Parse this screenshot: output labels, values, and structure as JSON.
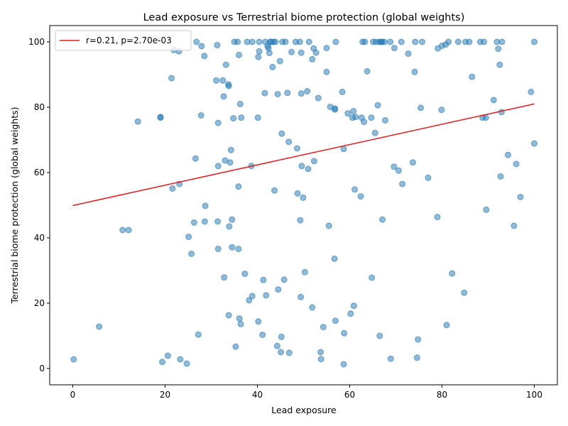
{
  "chart_data": {
    "type": "scatter",
    "title": "Lead exposure vs Terrestrial biome protection (global weights)",
    "xlabel": "Lead exposure",
    "ylabel": "Terrestrial biome protection (global weights)",
    "xlim": [
      -5,
      105
    ],
    "ylim": [
      -5,
      105
    ],
    "x_ticks": [
      0,
      20,
      40,
      60,
      80,
      100
    ],
    "y_ticks": [
      0,
      20,
      40,
      60,
      80,
      100
    ],
    "grid": false,
    "legend_position": "upper-left",
    "colors": {
      "points": "#1f77b4",
      "fit": "#e41a1c"
    },
    "fit_line": {
      "label": "r=0.21, p=2.70e-03",
      "x": [
        0,
        100
      ],
      "y": [
        49.9,
        81.0
      ]
    },
    "points": [
      [
        0.2,
        2.8
      ],
      [
        5.7,
        12.8
      ],
      [
        10.8,
        42.4
      ],
      [
        12.1,
        42.4
      ],
      [
        14.1,
        75.6
      ],
      [
        19.0,
        77.0
      ],
      [
        19.0,
        76.8
      ],
      [
        19.4,
        2.0
      ],
      [
        20.6,
        3.9
      ],
      [
        21.4,
        88.9
      ],
      [
        21.6,
        55.1
      ],
      [
        21.9,
        97.5
      ],
      [
        23.0,
        97.1
      ],
      [
        23.1,
        56.5
      ],
      [
        23.3,
        2.8
      ],
      [
        24.7,
        1.5
      ],
      [
        25.1,
        40.3
      ],
      [
        25.7,
        35.1
      ],
      [
        26.3,
        44.7
      ],
      [
        26.6,
        64.3
      ],
      [
        26.8,
        100.0
      ],
      [
        27.2,
        10.4
      ],
      [
        27.8,
        77.5
      ],
      [
        27.9,
        98.7
      ],
      [
        28.5,
        95.7
      ],
      [
        28.6,
        45.0
      ],
      [
        28.7,
        49.8
      ],
      [
        31.1,
        88.2
      ],
      [
        31.3,
        99.0
      ],
      [
        31.4,
        45.0
      ],
      [
        31.5,
        36.6
      ],
      [
        31.5,
        62.0
      ],
      [
        31.5,
        75.2
      ],
      [
        32.5,
        88.2
      ],
      [
        32.7,
        83.3
      ],
      [
        32.8,
        27.9
      ],
      [
        33.0,
        63.7
      ],
      [
        33.2,
        93.0
      ],
      [
        33.7,
        87.0
      ],
      [
        33.8,
        86.5
      ],
      [
        33.8,
        16.3
      ],
      [
        33.9,
        43.5
      ],
      [
        34.1,
        63.1
      ],
      [
        34.3,
        66.9
      ],
      [
        34.5,
        45.6
      ],
      [
        34.5,
        37.1
      ],
      [
        34.8,
        76.6
      ],
      [
        35.0,
        100.0
      ],
      [
        35.3,
        6.7
      ],
      [
        35.7,
        100.0
      ],
      [
        35.9,
        36.6
      ],
      [
        35.9,
        55.7
      ],
      [
        36.0,
        96.0
      ],
      [
        36.1,
        15.3
      ],
      [
        36.3,
        81.0
      ],
      [
        36.4,
        13.6
      ],
      [
        36.5,
        76.8
      ],
      [
        37.3,
        29.0
      ],
      [
        37.8,
        100.0
      ],
      [
        38.2,
        20.9
      ],
      [
        38.7,
        62.0
      ],
      [
        38.9,
        22.2
      ],
      [
        38.9,
        100.0
      ],
      [
        40.1,
        76.8
      ],
      [
        40.2,
        95.4
      ],
      [
        40.2,
        14.4
      ],
      [
        40.4,
        100.0
      ],
      [
        40.4,
        97.1
      ],
      [
        41.1,
        10.3
      ],
      [
        41.3,
        27.1
      ],
      [
        41.6,
        84.3
      ],
      [
        41.7,
        100.0
      ],
      [
        41.9,
        22.4
      ],
      [
        42.2,
        98.7
      ],
      [
        42.4,
        98.1
      ],
      [
        42.6,
        96.6
      ],
      [
        42.7,
        100.0
      ],
      [
        43.0,
        100.0
      ],
      [
        43.3,
        92.3
      ],
      [
        43.5,
        100.0
      ],
      [
        43.7,
        54.5
      ],
      [
        43.9,
        100.0
      ],
      [
        44.3,
        6.9
      ],
      [
        44.4,
        84.0
      ],
      [
        44.5,
        24.2
      ],
      [
        44.9,
        94.1
      ],
      [
        45.1,
        5.0
      ],
      [
        45.2,
        9.7
      ],
      [
        45.3,
        71.9
      ],
      [
        45.4,
        100.0
      ],
      [
        45.8,
        27.2
      ],
      [
        46.1,
        100.0
      ],
      [
        46.5,
        84.4
      ],
      [
        46.8,
        69.4
      ],
      [
        46.9,
        4.8
      ],
      [
        47.4,
        96.9
      ],
      [
        48.3,
        100.0
      ],
      [
        48.6,
        67.4
      ],
      [
        48.7,
        53.6
      ],
      [
        49.2,
        100.0
      ],
      [
        49.3,
        45.4
      ],
      [
        49.4,
        21.9
      ],
      [
        49.5,
        84.2
      ],
      [
        49.5,
        96.7
      ],
      [
        49.6,
        62.0
      ],
      [
        49.9,
        52.3
      ],
      [
        50.3,
        29.5
      ],
      [
        50.8,
        84.9
      ],
      [
        51.0,
        61.1
      ],
      [
        51.2,
        100.0
      ],
      [
        51.9,
        94.7
      ],
      [
        51.9,
        18.7
      ],
      [
        52.2,
        98.0
      ],
      [
        52.3,
        63.5
      ],
      [
        52.7,
        96.7
      ],
      [
        53.2,
        82.8
      ],
      [
        53.7,
        5.0
      ],
      [
        53.8,
        2.9
      ],
      [
        54.3,
        12.7
      ],
      [
        55.0,
        98.1
      ],
      [
        55.0,
        90.8
      ],
      [
        55.5,
        43.7
      ],
      [
        55.8,
        80.1
      ],
      [
        56.7,
        33.6
      ],
      [
        56.8,
        79.3
      ],
      [
        56.8,
        79.6
      ],
      [
        56.9,
        14.6
      ],
      [
        57.0,
        100.0
      ],
      [
        58.4,
        84.7
      ],
      [
        58.7,
        67.2
      ],
      [
        58.7,
        1.3
      ],
      [
        58.8,
        10.8
      ],
      [
        59.6,
        78.1
      ],
      [
        60.2,
        16.8
      ],
      [
        60.6,
        76.8
      ],
      [
        60.8,
        78.8
      ],
      [
        60.9,
        19.2
      ],
      [
        61.1,
        54.8
      ],
      [
        61.3,
        77.0
      ],
      [
        62.4,
        52.7
      ],
      [
        62.6,
        76.8
      ],
      [
        62.8,
        100.0
      ],
      [
        63.1,
        75.5
      ],
      [
        63.3,
        100.0
      ],
      [
        63.8,
        91.0
      ],
      [
        64.7,
        76.8
      ],
      [
        64.8,
        27.8
      ],
      [
        65.1,
        100.0
      ],
      [
        65.5,
        72.1
      ],
      [
        65.7,
        100.0
      ],
      [
        66.1,
        80.6
      ],
      [
        66.4,
        100.0
      ],
      [
        66.5,
        10.0
      ],
      [
        66.8,
        100.0
      ],
      [
        67.0,
        100.0
      ],
      [
        67.1,
        45.6
      ],
      [
        67.5,
        100.0
      ],
      [
        67.7,
        76.0
      ],
      [
        68.8,
        100.0
      ],
      [
        68.9,
        3.0
      ],
      [
        69.6,
        61.8
      ],
      [
        69.7,
        98.1
      ],
      [
        70.6,
        60.6
      ],
      [
        71.2,
        100.0
      ],
      [
        71.4,
        56.5
      ],
      [
        72.7,
        96.4
      ],
      [
        73.7,
        63.1
      ],
      [
        74.1,
        90.8
      ],
      [
        74.2,
        100.0
      ],
      [
        74.6,
        3.3
      ],
      [
        74.8,
        8.9
      ],
      [
        75.4,
        79.8
      ],
      [
        75.7,
        100.0
      ],
      [
        77.0,
        58.4
      ],
      [
        79.0,
        46.4
      ],
      [
        79.1,
        98.0
      ],
      [
        79.9,
        79.2
      ],
      [
        80.0,
        98.8
      ],
      [
        80.8,
        99.2
      ],
      [
        81.0,
        13.3
      ],
      [
        81.4,
        100.0
      ],
      [
        82.2,
        29.1
      ],
      [
        83.5,
        100.0
      ],
      [
        84.8,
        23.2
      ],
      [
        85.1,
        100.0
      ],
      [
        85.9,
        100.0
      ],
      [
        86.5,
        89.3
      ],
      [
        88.3,
        100.0
      ],
      [
        88.8,
        76.8
      ],
      [
        89.1,
        100.0
      ],
      [
        89.5,
        76.8
      ],
      [
        89.6,
        48.6
      ],
      [
        91.2,
        82.2
      ],
      [
        91.9,
        100.0
      ],
      [
        92.2,
        97.9
      ],
      [
        92.5,
        93.0
      ],
      [
        92.7,
        58.8
      ],
      [
        92.9,
        78.5
      ],
      [
        93.0,
        100.0
      ],
      [
        94.3,
        65.4
      ],
      [
        95.6,
        43.7
      ],
      [
        96.1,
        62.6
      ],
      [
        97.0,
        52.5
      ],
      [
        99.3,
        84.7
      ],
      [
        100.0,
        100.0
      ],
      [
        100.0,
        68.9
      ]
    ]
  }
}
